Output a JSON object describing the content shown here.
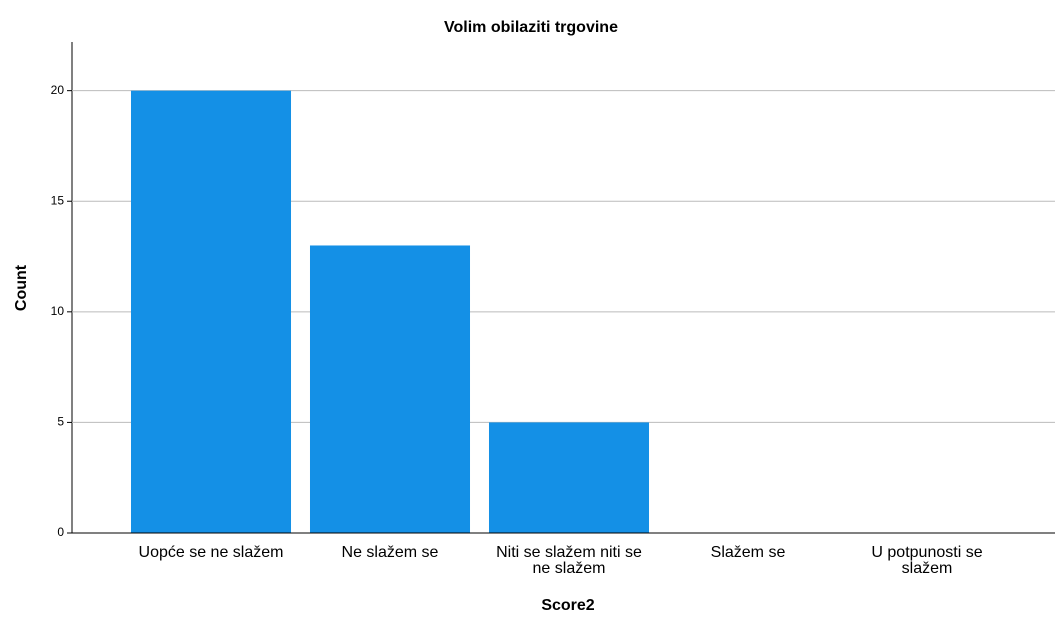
{
  "chart_data": {
    "type": "bar",
    "title": "Volim obilaziti trgovine",
    "x_label": "Score2",
    "y_label": "Count",
    "categories": [
      "Uopće se ne slažem",
      "Ne slažem se",
      "Niti se slažem niti se ne slažem",
      "Slažem se",
      "U potpunosti se slažem"
    ],
    "values": [
      20,
      13,
      5,
      0,
      0
    ],
    "color": "#1490e6",
    "ylim": [
      0,
      22.2
    ],
    "yticks": [
      0,
      5,
      10,
      15,
      20
    ],
    "grid": true
  }
}
